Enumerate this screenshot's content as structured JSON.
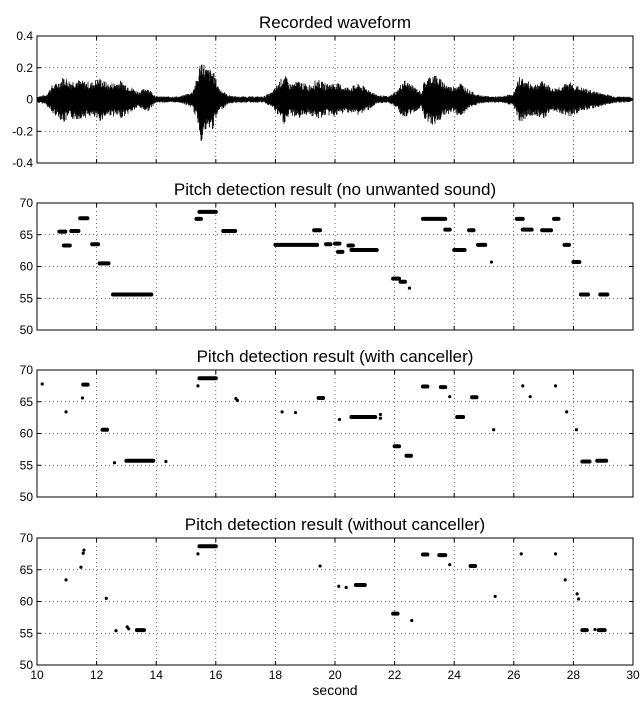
{
  "chart_data": [
    {
      "type": "line",
      "title": "Recorded waveform",
      "ylim": [
        -0.4,
        0.4
      ],
      "yticks": [
        "-0.4",
        "-0.2",
        "0",
        "0.2",
        "0.4"
      ],
      "xlim": [
        10,
        30
      ],
      "grid": true,
      "color": "#000000",
      "series": [
        {
          "envelope": [
            [
              10.0,
              0.02
            ],
            [
              10.3,
              0.03
            ],
            [
              10.5,
              0.09
            ],
            [
              10.7,
              0.11
            ],
            [
              10.9,
              0.15
            ],
            [
              11.1,
              0.12
            ],
            [
              11.3,
              0.13
            ],
            [
              11.5,
              0.12
            ],
            [
              11.8,
              0.11
            ],
            [
              12.1,
              0.14
            ],
            [
              12.4,
              0.1
            ],
            [
              12.8,
              0.12
            ],
            [
              13.1,
              0.09
            ],
            [
              13.4,
              0.05
            ],
            [
              13.7,
              0.08
            ],
            [
              14.0,
              0.02
            ],
            [
              14.4,
              0.02
            ],
            [
              14.8,
              0.02
            ],
            [
              15.2,
              0.05
            ],
            [
              15.4,
              0.15
            ],
            [
              15.5,
              0.27
            ],
            [
              15.7,
              0.2
            ],
            [
              15.9,
              0.19
            ],
            [
              16.1,
              0.08
            ],
            [
              16.4,
              0.03
            ],
            [
              16.7,
              0.02
            ],
            [
              17.2,
              0.02
            ],
            [
              17.6,
              0.02
            ],
            [
              17.9,
              0.05
            ],
            [
              18.1,
              0.11
            ],
            [
              18.3,
              0.16
            ],
            [
              18.5,
              0.1
            ],
            [
              18.8,
              0.12
            ],
            [
              19.1,
              0.09
            ],
            [
              19.4,
              0.13
            ],
            [
              19.7,
              0.1
            ],
            [
              20.0,
              0.11
            ],
            [
              20.4,
              0.08
            ],
            [
              20.8,
              0.1
            ],
            [
              21.1,
              0.07
            ],
            [
              21.4,
              0.03
            ],
            [
              21.8,
              0.02
            ],
            [
              22.1,
              0.06
            ],
            [
              22.3,
              0.13
            ],
            [
              22.6,
              0.09
            ],
            [
              22.9,
              0.05
            ],
            [
              23.0,
              0.12
            ],
            [
              23.3,
              0.17
            ],
            [
              23.6,
              0.12
            ],
            [
              23.9,
              0.08
            ],
            [
              24.2,
              0.11
            ],
            [
              24.5,
              0.06
            ],
            [
              24.8,
              0.03
            ],
            [
              25.2,
              0.02
            ],
            [
              25.6,
              0.02
            ],
            [
              26.0,
              0.04
            ],
            [
              26.2,
              0.15
            ],
            [
              26.4,
              0.12
            ],
            [
              26.7,
              0.1
            ],
            [
              27.0,
              0.12
            ],
            [
              27.3,
              0.07
            ],
            [
              27.6,
              0.09
            ],
            [
              27.9,
              0.11
            ],
            [
              28.2,
              0.08
            ],
            [
              28.6,
              0.06
            ],
            [
              29.0,
              0.04
            ],
            [
              29.4,
              0.02
            ],
            [
              29.8,
              0.02
            ],
            [
              30.0,
              0.01
            ]
          ]
        }
      ]
    },
    {
      "type": "scatter",
      "title": "Pitch detection result (no unwanted sound)",
      "ylim": [
        50,
        70
      ],
      "yticks": [
        "50",
        "55",
        "60",
        "65",
        "70"
      ],
      "xlim": [
        10,
        30
      ],
      "grid": true,
      "color": "#000000",
      "series": [
        {
          "segments": [
            [
              10.75,
              10.95,
              65.5
            ],
            [
              10.9,
              11.1,
              63.3
            ],
            [
              11.15,
              11.4,
              65.6
            ],
            [
              11.45,
              11.7,
              67.6
            ],
            [
              11.85,
              12.05,
              63.5
            ],
            [
              12.1,
              12.4,
              60.5
            ],
            [
              12.55,
              13.85,
              55.6
            ],
            [
              15.35,
              15.5,
              67.5
            ],
            [
              15.45,
              16.0,
              68.6
            ],
            [
              16.25,
              16.65,
              65.6
            ],
            [
              18.0,
              19.4,
              63.4
            ],
            [
              19.3,
              19.5,
              65.7
            ],
            [
              19.7,
              19.85,
              63.5
            ],
            [
              20.0,
              20.15,
              63.6
            ],
            [
              20.1,
              20.25,
              62.3
            ],
            [
              20.45,
              20.6,
              63.3
            ],
            [
              20.55,
              21.4,
              62.6
            ],
            [
              21.95,
              22.15,
              58.1
            ],
            [
              22.2,
              22.35,
              57.6
            ],
            [
              22.45,
              22.55,
              56.6
            ],
            [
              22.95,
              23.7,
              67.5
            ],
            [
              23.7,
              23.85,
              65.8
            ],
            [
              24.0,
              24.35,
              62.6
            ],
            [
              24.5,
              24.65,
              65.7
            ],
            [
              24.8,
              25.05,
              63.4
            ],
            [
              25.2,
              25.3,
              60.7
            ],
            [
              26.1,
              26.3,
              67.5
            ],
            [
              26.3,
              26.6,
              65.8
            ],
            [
              26.95,
              27.25,
              65.7
            ],
            [
              27.35,
              27.5,
              67.5
            ],
            [
              27.7,
              27.85,
              63.4
            ],
            [
              28.0,
              28.2,
              60.7
            ],
            [
              28.25,
              28.5,
              55.6
            ],
            [
              28.9,
              29.15,
              55.6
            ]
          ]
        }
      ]
    },
    {
      "type": "scatter",
      "title": "Pitch detection result (with canceller)",
      "ylim": [
        50,
        70
      ],
      "yticks": [
        "50",
        "55",
        "60",
        "65",
        "70"
      ],
      "xlim": [
        10,
        30
      ],
      "grid": true,
      "color": "#000000",
      "series": [
        {
          "segments": [
            [
              10.15,
              10.2,
              67.8
            ],
            [
              10.95,
              11.0,
              63.4
            ],
            [
              11.5,
              11.55,
              65.6
            ],
            [
              11.55,
              11.7,
              67.7
            ],
            [
              12.2,
              12.35,
              60.6
            ],
            [
              12.55,
              12.65,
              55.4
            ],
            [
              13.0,
              13.9,
              55.7
            ],
            [
              14.3,
              14.35,
              55.6
            ],
            [
              15.35,
              15.45,
              67.5
            ],
            [
              15.45,
              16.0,
              68.7
            ],
            [
              16.65,
              16.7,
              65.5
            ],
            [
              16.7,
              16.75,
              65.2
            ],
            [
              18.2,
              18.25,
              63.4
            ],
            [
              18.65,
              18.7,
              63.3
            ],
            [
              19.45,
              19.6,
              65.6
            ],
            [
              20.1,
              20.2,
              62.2
            ],
            [
              20.55,
              21.35,
              62.6
            ],
            [
              21.5,
              21.55,
              63.0
            ],
            [
              21.5,
              21.55,
              62.4
            ],
            [
              22.0,
              22.15,
              58.0
            ],
            [
              22.4,
              22.55,
              56.5
            ],
            [
              22.95,
              23.1,
              67.4
            ],
            [
              23.55,
              23.7,
              67.3
            ],
            [
              23.8,
              23.9,
              65.8
            ],
            [
              24.1,
              24.3,
              62.6
            ],
            [
              24.6,
              24.75,
              65.7
            ],
            [
              25.3,
              25.35,
              60.6
            ],
            [
              26.25,
              26.35,
              67.5
            ],
            [
              26.5,
              26.6,
              65.8
            ],
            [
              27.35,
              27.45,
              67.5
            ],
            [
              27.75,
              27.8,
              63.4
            ],
            [
              28.05,
              28.15,
              60.6
            ],
            [
              28.3,
              28.55,
              55.6
            ],
            [
              28.8,
              29.1,
              55.7
            ]
          ]
        }
      ]
    },
    {
      "type": "scatter",
      "title": "Pitch detection result (without canceller)",
      "xlabel": "second",
      "ylim": [
        50,
        70
      ],
      "yticks": [
        "50",
        "55",
        "60",
        "65",
        "70"
      ],
      "xlim": [
        10,
        30
      ],
      "xticks": [
        "10",
        "12",
        "14",
        "16",
        "18",
        "20",
        "22",
        "24",
        "26",
        "28",
        "30"
      ],
      "grid": true,
      "color": "#000000",
      "series": [
        {
          "segments": [
            [
              10.95,
              11.0,
              63.4
            ],
            [
              11.45,
              11.5,
              65.4
            ],
            [
              11.5,
              11.6,
              67.6
            ],
            [
              11.55,
              11.6,
              68.1
            ],
            [
              12.3,
              12.35,
              60.5
            ],
            [
              12.6,
              12.7,
              55.4
            ],
            [
              13.0,
              13.05,
              56.0
            ],
            [
              13.05,
              13.1,
              55.7
            ],
            [
              13.35,
              13.6,
              55.5
            ],
            [
              15.35,
              15.45,
              67.5
            ],
            [
              15.45,
              16.0,
              68.7
            ],
            [
              19.45,
              19.55,
              65.6
            ],
            [
              20.1,
              20.15,
              62.4
            ],
            [
              20.35,
              20.4,
              62.2
            ],
            [
              20.7,
              21.0,
              62.6
            ],
            [
              21.95,
              22.1,
              58.1
            ],
            [
              22.55,
              22.6,
              57.0
            ],
            [
              22.95,
              23.1,
              67.4
            ],
            [
              23.5,
              23.7,
              67.3
            ],
            [
              23.8,
              23.9,
              65.8
            ],
            [
              24.55,
              24.7,
              65.6
            ],
            [
              25.35,
              25.4,
              60.8
            ],
            [
              26.2,
              26.3,
              67.5
            ],
            [
              27.35,
              27.45,
              67.5
            ],
            [
              27.7,
              27.75,
              63.4
            ],
            [
              28.1,
              28.15,
              61.2
            ],
            [
              28.15,
              28.2,
              60.4
            ],
            [
              28.3,
              28.45,
              55.5
            ],
            [
              28.7,
              28.75,
              55.6
            ],
            [
              28.85,
              29.05,
              55.5
            ]
          ]
        }
      ]
    }
  ]
}
